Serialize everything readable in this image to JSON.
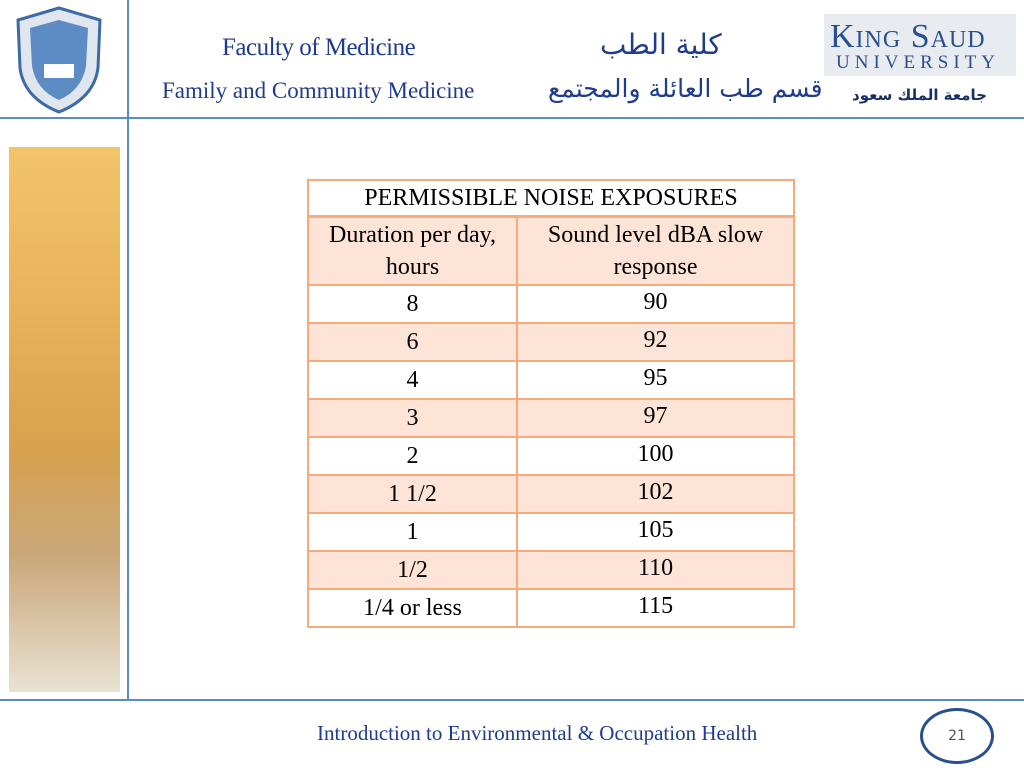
{
  "header": {
    "faculty_en": "Faculty of Medicine",
    "faculty_ar": "كلية الطب",
    "department_en": "Family and Community Medicine",
    "department_ar": "قسم طب العائلة والمجتمع",
    "university_en_1": "King Saud",
    "university_en_2": "University",
    "university_ar": "جامعة الملك سعود"
  },
  "table": {
    "title": "PERMISSIBLE NOISE EXPOSURES",
    "columns": [
      "Duration per day, hours",
      "Sound level dBA slow response"
    ],
    "rows": [
      [
        "8",
        90
      ],
      [
        "6",
        92
      ],
      [
        "4",
        95
      ],
      [
        "3",
        97
      ],
      [
        "2",
        100
      ],
      [
        "1 1/2",
        102
      ],
      [
        "1",
        105
      ],
      [
        "1/2",
        110
      ],
      [
        "1/4  or less",
        115
      ]
    ]
  },
  "footer": {
    "text": "Introduction to Environmental & Occupation Health",
    "page": 21
  }
}
